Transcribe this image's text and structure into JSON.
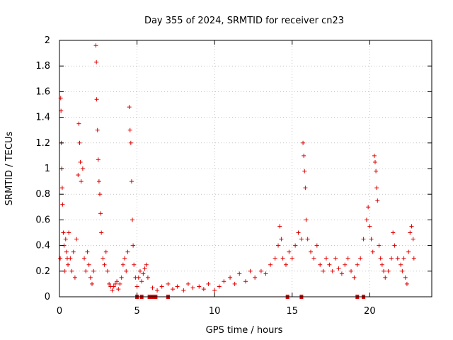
{
  "chart_data": {
    "type": "scatter",
    "title": "Day 355 of 2024, SRMTID for receiver cn23",
    "xlabel": "GPS time / hours",
    "ylabel": "SRMTID / TECUs",
    "xlim": [
      0,
      24
    ],
    "ylim": [
      0,
      2
    ],
    "x_ticks": [
      0,
      5,
      10,
      15,
      20
    ],
    "x_tick_labels": [
      "0",
      "5",
      "10",
      "15",
      "20"
    ],
    "y_ticks": [
      0,
      0.2,
      0.4,
      0.6,
      0.8,
      1,
      1.2,
      1.4,
      1.6,
      1.8,
      2
    ],
    "y_tick_labels": [
      "0",
      "0.2",
      "0.4",
      "0.6",
      "0.8",
      "1",
      "1.2",
      "1.4",
      "1.6",
      "1.8",
      "2"
    ],
    "grid": true,
    "marker": "+",
    "color": "#e00000",
    "series": [
      {
        "name": "SRMTID",
        "points": [
          [
            0.05,
            0.3
          ],
          [
            0.08,
            1.55
          ],
          [
            0.1,
            1.45
          ],
          [
            0.12,
            1.2
          ],
          [
            0.15,
            1.0
          ],
          [
            0.18,
            0.85
          ],
          [
            0.2,
            0.72
          ],
          [
            0.25,
            0.5
          ],
          [
            0.3,
            0.4
          ],
          [
            0.35,
            0.2
          ],
          [
            0.4,
            0.45
          ],
          [
            0.45,
            0.35
          ],
          [
            0.5,
            0.3
          ],
          [
            0.55,
            0.25
          ],
          [
            0.6,
            0.5
          ],
          [
            0.7,
            0.3
          ],
          [
            0.8,
            0.2
          ],
          [
            0.9,
            0.35
          ],
          [
            1.0,
            0.15
          ],
          [
            1.1,
            0.45
          ],
          [
            1.2,
            0.95
          ],
          [
            1.25,
            1.35
          ],
          [
            1.3,
            1.2
          ],
          [
            1.35,
            1.05
          ],
          [
            1.4,
            0.9
          ],
          [
            1.5,
            1.0
          ],
          [
            1.6,
            0.3
          ],
          [
            1.7,
            0.2
          ],
          [
            1.8,
            0.35
          ],
          [
            1.9,
            0.25
          ],
          [
            2.0,
            0.15
          ],
          [
            2.1,
            0.1
          ],
          [
            2.2,
            0.2
          ],
          [
            2.35,
            1.96
          ],
          [
            2.38,
            1.83
          ],
          [
            2.4,
            1.54
          ],
          [
            2.45,
            1.3
          ],
          [
            2.5,
            1.07
          ],
          [
            2.55,
            0.9
          ],
          [
            2.6,
            0.8
          ],
          [
            2.65,
            0.65
          ],
          [
            2.7,
            0.5
          ],
          [
            2.8,
            0.3
          ],
          [
            2.9,
            0.25
          ],
          [
            3.0,
            0.35
          ],
          [
            3.1,
            0.2
          ],
          [
            3.2,
            0.1
          ],
          [
            3.3,
            0.08
          ],
          [
            3.4,
            0.05
          ],
          [
            3.5,
            0.08
          ],
          [
            3.6,
            0.1
          ],
          [
            3.7,
            0.12
          ],
          [
            3.8,
            0.06
          ],
          [
            3.9,
            0.1
          ],
          [
            4.0,
            0.15
          ],
          [
            4.1,
            0.25
          ],
          [
            4.2,
            0.3
          ],
          [
            4.3,
            0.2
          ],
          [
            4.4,
            0.35
          ],
          [
            4.5,
            1.48
          ],
          [
            4.55,
            1.3
          ],
          [
            4.6,
            1.2
          ],
          [
            4.65,
            0.9
          ],
          [
            4.7,
            0.6
          ],
          [
            4.75,
            0.4
          ],
          [
            4.8,
            0.25
          ],
          [
            4.9,
            0.15
          ],
          [
            5.0,
            0.08
          ],
          [
            5.1,
            0.15
          ],
          [
            5.2,
            0.2
          ],
          [
            5.3,
            0.12
          ],
          [
            5.4,
            0.18
          ],
          [
            5.5,
            0.22
          ],
          [
            5.6,
            0.25
          ],
          [
            5.7,
            0.15
          ],
          [
            6.0,
            0.07
          ],
          [
            6.3,
            0.05
          ],
          [
            6.6,
            0.08
          ],
          [
            7.0,
            0.1
          ],
          [
            7.3,
            0.06
          ],
          [
            7.6,
            0.08
          ],
          [
            8.0,
            0.05
          ],
          [
            8.3,
            0.1
          ],
          [
            8.6,
            0.07
          ],
          [
            9.0,
            0.08
          ],
          [
            9.3,
            0.06
          ],
          [
            9.6,
            0.1
          ],
          [
            10.0,
            0.05
          ],
          [
            10.3,
            0.08
          ],
          [
            10.6,
            0.12
          ],
          [
            11.0,
            0.15
          ],
          [
            11.3,
            0.1
          ],
          [
            11.6,
            0.18
          ],
          [
            12.0,
            0.12
          ],
          [
            12.3,
            0.2
          ],
          [
            12.6,
            0.15
          ],
          [
            13.0,
            0.2
          ],
          [
            13.3,
            0.18
          ],
          [
            13.6,
            0.25
          ],
          [
            13.9,
            0.3
          ],
          [
            14.1,
            0.4
          ],
          [
            14.2,
            0.55
          ],
          [
            14.3,
            0.45
          ],
          [
            14.4,
            0.3
          ],
          [
            14.6,
            0.25
          ],
          [
            14.8,
            0.35
          ],
          [
            15.0,
            0.3
          ],
          [
            15.2,
            0.4
          ],
          [
            15.4,
            0.5
          ],
          [
            15.6,
            0.45
          ],
          [
            15.7,
            1.2
          ],
          [
            15.75,
            1.1
          ],
          [
            15.8,
            0.98
          ],
          [
            15.85,
            0.85
          ],
          [
            15.9,
            0.6
          ],
          [
            16.0,
            0.45
          ],
          [
            16.2,
            0.35
          ],
          [
            16.4,
            0.3
          ],
          [
            16.6,
            0.4
          ],
          [
            16.8,
            0.25
          ],
          [
            17.0,
            0.2
          ],
          [
            17.2,
            0.3
          ],
          [
            17.4,
            0.25
          ],
          [
            17.6,
            0.2
          ],
          [
            17.8,
            0.3
          ],
          [
            18.0,
            0.22
          ],
          [
            18.2,
            0.18
          ],
          [
            18.4,
            0.25
          ],
          [
            18.6,
            0.3
          ],
          [
            18.8,
            0.2
          ],
          [
            19.0,
            0.15
          ],
          [
            19.2,
            0.25
          ],
          [
            19.4,
            0.3
          ],
          [
            19.6,
            0.45
          ],
          [
            19.8,
            0.6
          ],
          [
            19.9,
            0.7
          ],
          [
            20.0,
            0.55
          ],
          [
            20.1,
            0.45
          ],
          [
            20.2,
            0.35
          ],
          [
            20.3,
            1.1
          ],
          [
            20.35,
            1.05
          ],
          [
            20.4,
            0.98
          ],
          [
            20.45,
            0.85
          ],
          [
            20.5,
            0.75
          ],
          [
            20.6,
            0.4
          ],
          [
            20.7,
            0.3
          ],
          [
            20.8,
            0.25
          ],
          [
            20.9,
            0.2
          ],
          [
            21.0,
            0.15
          ],
          [
            21.2,
            0.2
          ],
          [
            21.4,
            0.3
          ],
          [
            21.5,
            0.5
          ],
          [
            21.6,
            0.4
          ],
          [
            21.8,
            0.3
          ],
          [
            22.0,
            0.25
          ],
          [
            22.1,
            0.2
          ],
          [
            22.2,
            0.3
          ],
          [
            22.3,
            0.15
          ],
          [
            22.4,
            0.1
          ],
          [
            22.5,
            0.35
          ],
          [
            22.6,
            0.5
          ],
          [
            22.7,
            0.55
          ],
          [
            22.8,
            0.45
          ],
          [
            22.85,
            0.3
          ],
          [
            5.0,
            0.0
          ],
          [
            5.3,
            0.0
          ],
          [
            5.8,
            0.0
          ],
          [
            6.0,
            0.0
          ],
          [
            6.2,
            0.0
          ],
          [
            7.0,
            0.0
          ],
          [
            14.7,
            0.0
          ],
          [
            15.6,
            0.0
          ],
          [
            19.2,
            0.0
          ],
          [
            19.6,
            0.0
          ]
        ]
      }
    ]
  }
}
